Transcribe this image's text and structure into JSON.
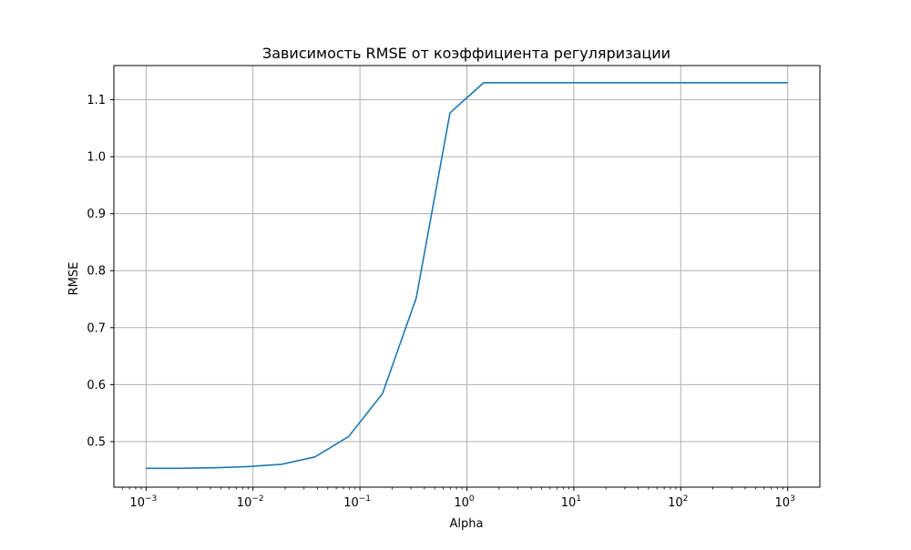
{
  "chart_data": {
    "type": "line",
    "title": "Зависимость RMSE от коэффициента регуляризации",
    "xlabel": "Alpha",
    "ylabel": "RMSE",
    "xscale": "log",
    "xlim": [
      0.0005,
      2000
    ],
    "ylim": [
      0.42,
      1.16
    ],
    "grid": true,
    "x_ticks": [
      {
        "value": 0.001,
        "exp": "−3"
      },
      {
        "value": 0.01,
        "exp": "−2"
      },
      {
        "value": 0.1,
        "exp": "−1"
      },
      {
        "value": 1,
        "exp": "0"
      },
      {
        "value": 10,
        "exp": "1"
      },
      {
        "value": 100,
        "exp": "2"
      },
      {
        "value": 1000,
        "exp": "3"
      }
    ],
    "x_tick_base": "10",
    "y_ticks": [
      {
        "value": 0.5,
        "label": "0.5"
      },
      {
        "value": 0.6,
        "label": "0.6"
      },
      {
        "value": 0.7,
        "label": "0.7"
      },
      {
        "value": 0.8,
        "label": "0.8"
      },
      {
        "value": 0.9,
        "label": "0.9"
      },
      {
        "value": 1.0,
        "label": "1.0"
      },
      {
        "value": 1.1,
        "label": "1.1"
      }
    ],
    "series": [
      {
        "color": "#1f77b4",
        "x": [
          0.001,
          0.00207,
          0.00428,
          0.00886,
          0.01833,
          0.03793,
          0.07848,
          0.1624,
          0.336,
          0.6952,
          1.438,
          2.976,
          6.158,
          12.74,
          26.37,
          54.56,
          112.9,
          233.6,
          483.3,
          1000
        ],
        "y": [
          0.453,
          0.453,
          0.454,
          0.456,
          0.46,
          0.473,
          0.509,
          0.584,
          0.752,
          1.077,
          1.13,
          1.13,
          1.13,
          1.13,
          1.13,
          1.13,
          1.13,
          1.13,
          1.13,
          1.13
        ]
      }
    ]
  }
}
